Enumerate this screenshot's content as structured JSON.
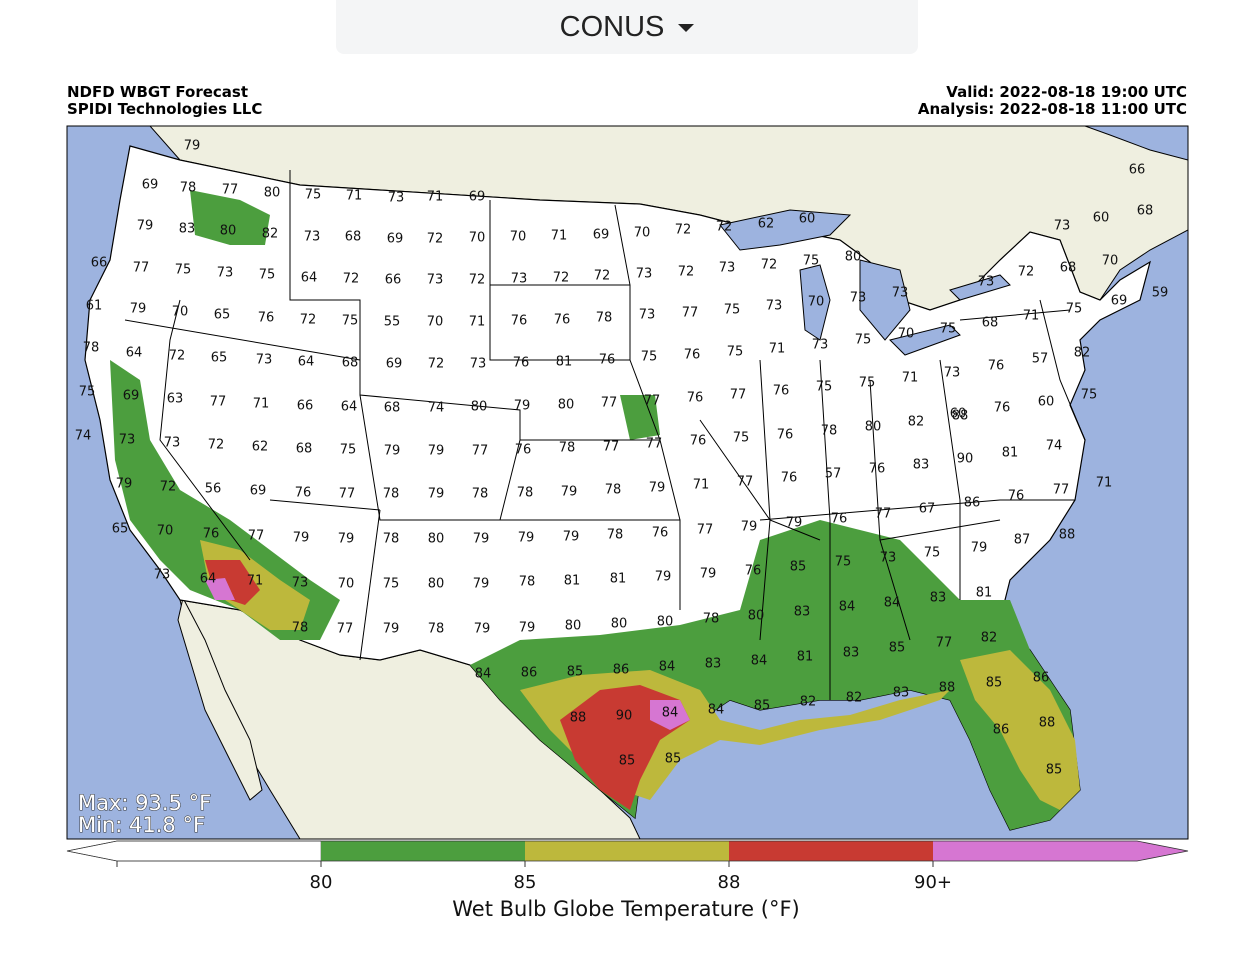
{
  "region_selector": {
    "label": "CONUS",
    "icon": "caret-down-icon"
  },
  "header": {
    "product": "NDFD WBGT Forecast",
    "company": "SPIDI Technologies LLC",
    "valid": "Valid: 2022-08-18 19:00 UTC",
    "analysis": "Analysis: 2022-08-18 11:00 UTC"
  },
  "stats": {
    "max": "Max: 93.5 °F",
    "min": "Min: 41.8 °F"
  },
  "colorbar": {
    "label": "Wet Bulb Globe Temperature (°F)",
    "ticks": [
      "80",
      "85",
      "88",
      "90+"
    ],
    "colors": {
      "below": "#ffffff",
      "c80": "#4c9e3e",
      "c85": "#bdb83c",
      "c88": "#c83a32",
      "c90": "#d676d2"
    }
  },
  "map_colors": {
    "ocean": "#9db3df",
    "land": "#efefe0",
    "lakes": "#9db3df",
    "us": "#ffffff"
  },
  "values": [
    "79",
    "69",
    "78",
    "77",
    "80",
    "75",
    "71",
    "73",
    "71",
    "69",
    "79",
    "83",
    "80",
    "82",
    "73",
    "68",
    "69",
    "72",
    "70",
    "70",
    "71",
    "69",
    "70",
    "72",
    "72",
    "62",
    "60",
    "66",
    "77",
    "75",
    "73",
    "75",
    "64",
    "72",
    "66",
    "73",
    "72",
    "73",
    "72",
    "72",
    "73",
    "72",
    "73",
    "72",
    "75",
    "80",
    "66",
    "60",
    "68",
    "73",
    "72",
    "68",
    "70",
    "61",
    "79",
    "70",
    "65",
    "76",
    "72",
    "75",
    "55",
    "70",
    "71",
    "76",
    "76",
    "78",
    "73",
    "77",
    "75",
    "73",
    "70",
    "73",
    "73",
    "73",
    "68",
    "71",
    "75",
    "69",
    "59",
    "78",
    "64",
    "72",
    "65",
    "73",
    "64",
    "68",
    "69",
    "72",
    "73",
    "76",
    "81",
    "76",
    "75",
    "76",
    "75",
    "71",
    "73",
    "75",
    "70",
    "75",
    "76",
    "57",
    "82",
    "75",
    "69",
    "63",
    "77",
    "71",
    "66",
    "64",
    "68",
    "74",
    "80",
    "79",
    "80",
    "77",
    "77",
    "76",
    "77",
    "76",
    "75",
    "75",
    "71",
    "73",
    "60",
    "76",
    "60",
    "75",
    "74",
    "73",
    "73",
    "72",
    "62",
    "68",
    "75",
    "79",
    "79",
    "77",
    "76",
    "78",
    "77",
    "77",
    "76",
    "75",
    "76",
    "78",
    "80",
    "82",
    "88",
    "81",
    "74",
    "79",
    "72",
    "56",
    "69",
    "76",
    "77",
    "78",
    "79",
    "78",
    "78",
    "79",
    "78",
    "79",
    "71",
    "77",
    "76",
    "57",
    "76",
    "83",
    "90",
    "76",
    "77",
    "71",
    "65",
    "70",
    "76",
    "77",
    "79",
    "79",
    "78",
    "80",
    "79",
    "79",
    "79",
    "78",
    "76",
    "77",
    "79",
    "79",
    "76",
    "77",
    "67",
    "86",
    "87",
    "88",
    "73",
    "64",
    "71",
    "73",
    "70",
    "75",
    "80",
    "79",
    "78",
    "81",
    "81",
    "79",
    "79",
    "76",
    "85",
    "75",
    "73",
    "75",
    "79",
    "78",
    "77",
    "79",
    "78",
    "79",
    "79",
    "80",
    "80",
    "80",
    "78",
    "80",
    "83",
    "84",
    "84",
    "83",
    "81",
    "77",
    "82",
    "84",
    "86",
    "85",
    "86",
    "84",
    "83",
    "84",
    "81",
    "83",
    "85",
    "85",
    "86",
    "88",
    "90",
    "84",
    "84",
    "85",
    "82",
    "82",
    "83",
    "88",
    "88",
    "85",
    "85",
    "86",
    "85"
  ]
}
